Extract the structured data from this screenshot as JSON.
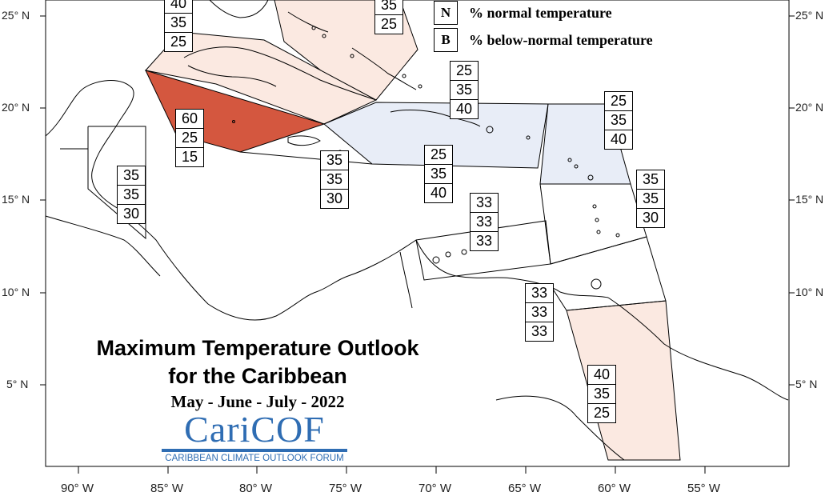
{
  "map": {
    "title_line1": "Maximum Temperature Outlook",
    "title_line2": "for the Caribbean",
    "period": "May - June - July - 2022",
    "logo": {
      "name": "CariCOF",
      "tagline": "CARIBBEAN CLIMATE OUTLOOK FORUM"
    },
    "legend": [
      {
        "key": "N",
        "text": "% normal temperature"
      },
      {
        "key": "B",
        "text": "% below-normal temperature"
      }
    ],
    "latitude_labels": [
      "25° N",
      "20° N",
      "15° N",
      "10° N",
      "5° N"
    ],
    "longitude_labels": [
      "90° W",
      "85° W",
      "80° W",
      "75° W",
      "70° W",
      "65° W",
      "60° W",
      "55° W"
    ],
    "colors": {
      "strong_above": "#d4573f",
      "light_above": "#fbe9e1",
      "light_below": "#e8edf7",
      "coast": "#000000",
      "logo_blue": "#2f6db3"
    },
    "zones": [
      {
        "id": "bahamas-north",
        "category": "light_above",
        "probabilities": [
          "35",
          "25"
        ]
      },
      {
        "id": "gulf-cuba-west",
        "category": "light_above",
        "probabilities": [
          "40",
          "35",
          "25"
        ]
      },
      {
        "id": "western-caribbean",
        "category": "strong_above",
        "probabilities": [
          "60",
          "25",
          "15"
        ]
      },
      {
        "id": "belize",
        "category": "none",
        "probabilities": [
          "35",
          "35",
          "30"
        ]
      },
      {
        "id": "jamaica",
        "category": "none",
        "probabilities": [
          "35",
          "35",
          "30"
        ]
      },
      {
        "id": "turks-caicos",
        "category": "light_below",
        "probabilities": [
          "25",
          "35",
          "40"
        ]
      },
      {
        "id": "hispaniola-puerto-rico",
        "category": "light_below",
        "probabilities": [
          "25",
          "35",
          "40"
        ]
      },
      {
        "id": "leeward-islands",
        "category": "light_below",
        "probabilities": [
          "25",
          "35",
          "40"
        ]
      },
      {
        "id": "windward-islands",
        "category": "none",
        "probabilities": [
          "35",
          "35",
          "30"
        ]
      },
      {
        "id": "abc-islands",
        "category": "none",
        "probabilities": [
          "33",
          "33",
          "33"
        ]
      },
      {
        "id": "trinidad",
        "category": "none",
        "probabilities": [
          "33",
          "33",
          "33"
        ]
      },
      {
        "id": "guianas",
        "category": "light_above",
        "probabilities": [
          "40",
          "35",
          "25"
        ]
      }
    ]
  }
}
